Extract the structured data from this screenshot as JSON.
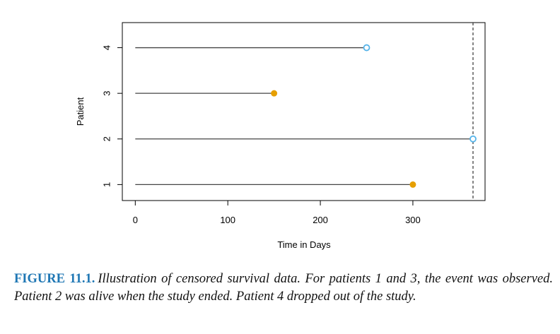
{
  "chart_data": {
    "type": "scatter",
    "xlabel": "Time in Days",
    "ylabel": "Patient",
    "xlim": [
      -14,
      378
    ],
    "ylim": [
      0.65,
      4.55
    ],
    "x_ticks": [
      0,
      100,
      200,
      300
    ],
    "y_ticks": [
      1,
      2,
      3,
      4
    ],
    "study_end": 365,
    "colors": {
      "event": "#e69f00",
      "censored": "#56b4e9",
      "line": "#444444"
    },
    "patients": [
      {
        "patient": 1,
        "time": 300,
        "status": "event"
      },
      {
        "patient": 2,
        "time": 365,
        "status": "censored"
      },
      {
        "patient": 3,
        "time": 150,
        "status": "event"
      },
      {
        "patient": 4,
        "time": 250,
        "status": "censored"
      }
    ]
  },
  "caption": {
    "label": "FIGURE 11.1.",
    "text": "Illustration of censored survival data. For patients 1 and 3, the event was observed. Patient 2 was alive when the study ended. Patient 4 dropped out of the study."
  }
}
